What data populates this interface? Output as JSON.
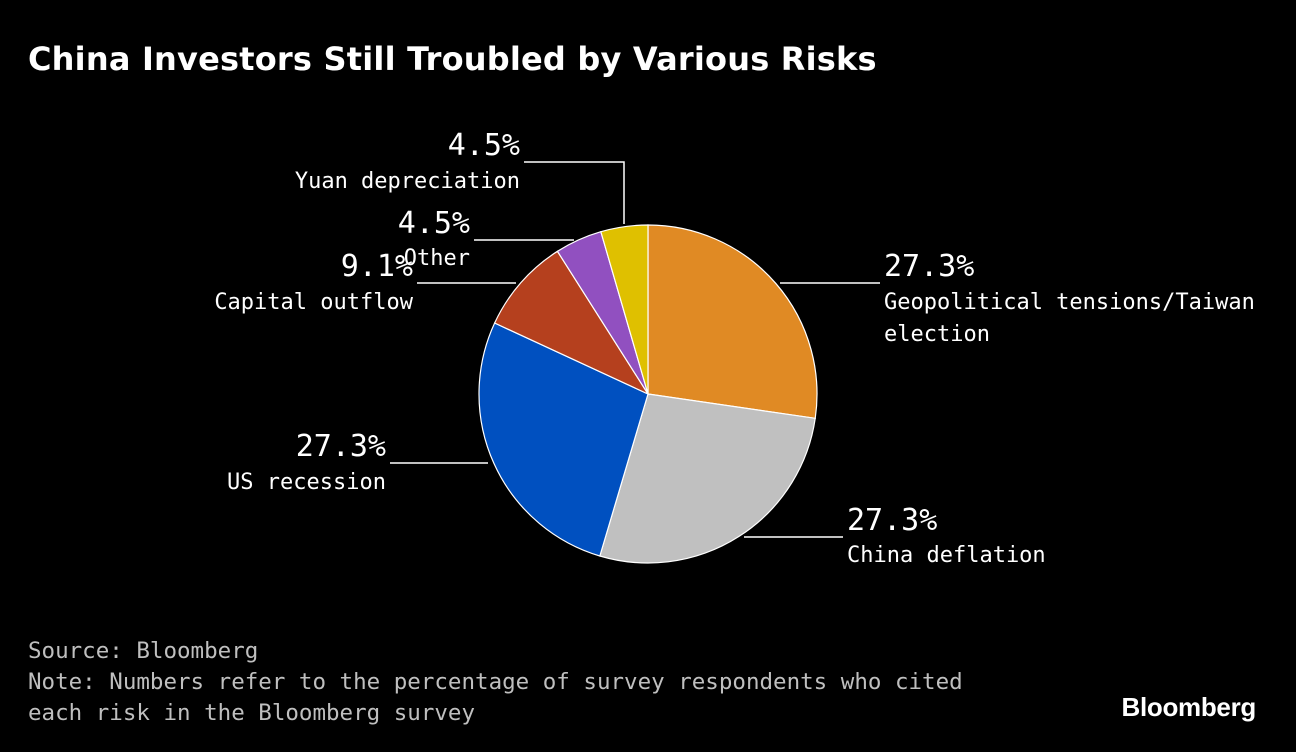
{
  "title": "China Investors Still Troubled by Various Risks",
  "chart_data": {
    "type": "pie",
    "title": "China Investors Still Troubled by Various Risks",
    "start_angle_deg": 0,
    "direction": "clockwise",
    "slices": [
      {
        "label_lines": [
          "Geopolitical tensions/Taiwan",
          "election"
        ],
        "value": 27.3,
        "value_label": "27.3%",
        "color": "#e08a24"
      },
      {
        "label_lines": [
          "China deflation"
        ],
        "value": 27.3,
        "value_label": "27.3%",
        "color": "#c0c0c0"
      },
      {
        "label_lines": [
          "US recession"
        ],
        "value": 27.3,
        "value_label": "27.3%",
        "color": "#0050c0"
      },
      {
        "label_lines": [
          "Capital outflow"
        ],
        "value": 9.1,
        "value_label": "9.1%",
        "color": "#b5401e"
      },
      {
        "label_lines": [
          "Other"
        ],
        "value": 4.5,
        "value_label": "4.5%",
        "color": "#9150c0"
      },
      {
        "label_lines": [
          "Yuan depreciation"
        ],
        "value": 4.5,
        "value_label": "4.5%",
        "color": "#dfc000"
      }
    ]
  },
  "footer": {
    "source": "Source: Bloomberg",
    "note": "Note: Numbers refer to the percentage of survey respondents who cited each risk in the Bloomberg survey"
  },
  "brand": "Bloomberg"
}
